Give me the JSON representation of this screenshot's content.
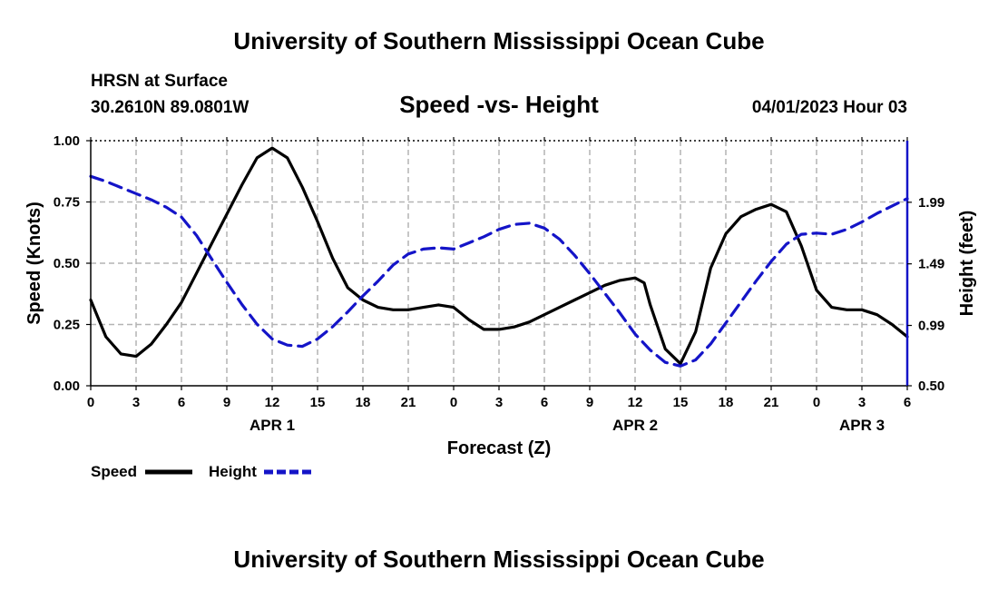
{
  "header": {
    "title": "University of Southern Mississippi Ocean Cube",
    "station": "HRSN at Surface",
    "location": "30.2610N  89.0801W",
    "subtitle": "Speed -vs- Height",
    "datetime": "04/01/2023 Hour 03",
    "footer_title": "University of Southern Mississippi Ocean Cube"
  },
  "colors": {
    "speed": "#000000",
    "height": "#1414c8",
    "grid": "#b4b4b4"
  },
  "chart_data": {
    "type": "line",
    "title": "Speed -vs- Height",
    "xlabel": "Forecast (Z)",
    "ylabel_left": "Speed (Knots)",
    "ylabel_right": "Height (feet)",
    "x_tick_labels": [
      "0",
      "3",
      "6",
      "9",
      "12",
      "15",
      "18",
      "21",
      "0",
      "3",
      "6",
      "9",
      "12",
      "15",
      "18",
      "21",
      "0",
      "3",
      "6"
    ],
    "x_range_hours": [
      0,
      54
    ],
    "date_labels": [
      {
        "label": "APR 1",
        "hour": 12
      },
      {
        "label": "APR 2",
        "hour": 36
      },
      {
        "label": "APR 3",
        "hour": 51
      }
    ],
    "y_left": {
      "range": [
        0,
        1
      ],
      "ticks": [
        "0.00",
        "0.25",
        "0.50",
        "0.75",
        "1.00"
      ]
    },
    "y_right": {
      "range": [
        0.5,
        2.49
      ],
      "ticks": [
        "0.50",
        "0.99",
        "1.49",
        "1.99"
      ]
    },
    "grid": true,
    "legend": [
      {
        "name": "Speed",
        "style": "solid"
      },
      {
        "name": "Height",
        "style": "dashed"
      }
    ],
    "series": [
      {
        "name": "Speed",
        "axis": "left",
        "x": [
          0,
          1,
          2,
          3,
          4,
          5,
          6,
          7,
          8,
          9,
          10,
          11,
          12,
          13,
          14,
          15,
          16,
          17,
          18,
          19,
          20,
          21,
          22,
          23,
          24,
          25,
          26,
          27,
          28,
          29,
          30,
          31,
          32,
          33,
          34,
          35,
          36,
          36.6,
          37,
          38,
          39,
          40,
          41,
          42,
          43,
          44,
          45,
          46,
          47,
          48,
          49,
          50,
          51,
          52,
          53,
          54
        ],
        "values": [
          0.35,
          0.2,
          0.13,
          0.12,
          0.17,
          0.25,
          0.34,
          0.46,
          0.58,
          0.7,
          0.82,
          0.93,
          0.97,
          0.93,
          0.81,
          0.67,
          0.52,
          0.4,
          0.35,
          0.32,
          0.31,
          0.31,
          0.32,
          0.33,
          0.32,
          0.27,
          0.23,
          0.23,
          0.24,
          0.26,
          0.29,
          0.32,
          0.35,
          0.38,
          0.41,
          0.43,
          0.44,
          0.42,
          0.33,
          0.15,
          0.09,
          0.22,
          0.48,
          0.62,
          0.69,
          0.72,
          0.74,
          0.71,
          0.57,
          0.39,
          0.32,
          0.31,
          0.31,
          0.29,
          0.25,
          0.2
        ]
      },
      {
        "name": "Height",
        "axis": "right",
        "x": [
          0,
          1,
          2,
          3,
          4,
          5,
          6,
          7,
          8,
          9,
          10,
          11,
          12,
          13,
          14,
          15,
          16,
          17,
          18,
          19,
          20,
          21,
          22,
          23,
          24,
          25,
          26,
          27,
          28,
          29,
          30,
          31,
          32,
          33,
          34,
          35,
          36,
          37,
          38,
          39,
          40,
          41,
          42,
          43,
          44,
          45,
          46,
          47,
          48,
          49,
          50,
          51,
          52,
          53,
          54
        ],
        "values": [
          2.2,
          2.16,
          2.11,
          2.06,
          2.01,
          1.95,
          1.87,
          1.72,
          1.53,
          1.34,
          1.16,
          1.0,
          0.88,
          0.83,
          0.82,
          0.88,
          0.98,
          1.1,
          1.23,
          1.35,
          1.48,
          1.57,
          1.61,
          1.62,
          1.61,
          1.66,
          1.71,
          1.77,
          1.81,
          1.82,
          1.78,
          1.69,
          1.56,
          1.41,
          1.25,
          1.09,
          0.92,
          0.79,
          0.69,
          0.66,
          0.71,
          0.84,
          1.01,
          1.18,
          1.35,
          1.51,
          1.65,
          1.73,
          1.74,
          1.73,
          1.77,
          1.83,
          1.9,
          1.96,
          2.02
        ]
      }
    ]
  }
}
